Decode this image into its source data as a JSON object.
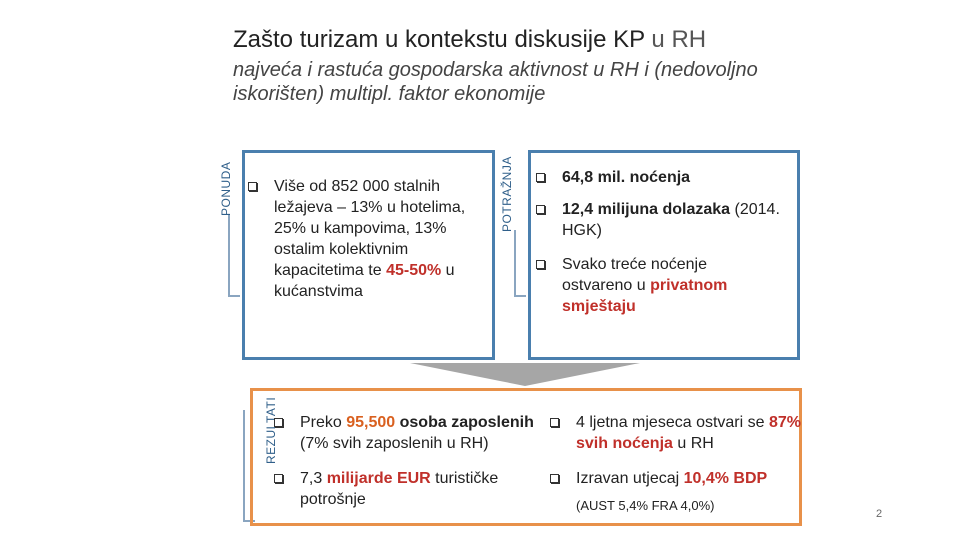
{
  "header": {
    "title": "Zašto turizam u kontekstu diskusije KP",
    "title_suffix": "u RH",
    "subtitle": "najveća i rastuća gospodarska aktivnost u RH i (nedovoljno iskorišten) multipl. faktor ekonomije"
  },
  "ponuda": {
    "label": "PONUDA",
    "items": [
      [
        "Više od 852 000 stalnih ležajeva – 13% u hotelima, 25% u kampovima, 13% ostalim kolektivnim kapacitetima te ",
        "45-50%",
        " u kućanstvima"
      ]
    ]
  },
  "potraznja": {
    "label": "POTRAŽNJA",
    "items": [
      [
        "64,8 mil. noćenja"
      ],
      [
        "12,4 milijuna dolazaka",
        " (2014. HGK)"
      ],
      [
        "Svako treće noćenje ostvareno u ",
        "privatnom smještaju"
      ]
    ]
  },
  "rezultati": {
    "label": "REZULTATI",
    "items": [
      [
        "Preko ",
        "95,500",
        " osoba zaposlenih",
        " (7% svih zaposlenih u RH)"
      ],
      [
        "7,3 ",
        "milijarde EUR",
        " turističke potrošnje"
      ],
      [
        "4 ljetna mjeseca ostvari se ",
        "87% svih noćenja",
        " u RH"
      ],
      [
        "Izravan utjecaj ",
        "10,4% BDP",
        "(AUST 5,4% FRA 4,0%)"
      ]
    ]
  },
  "page_number": "2"
}
